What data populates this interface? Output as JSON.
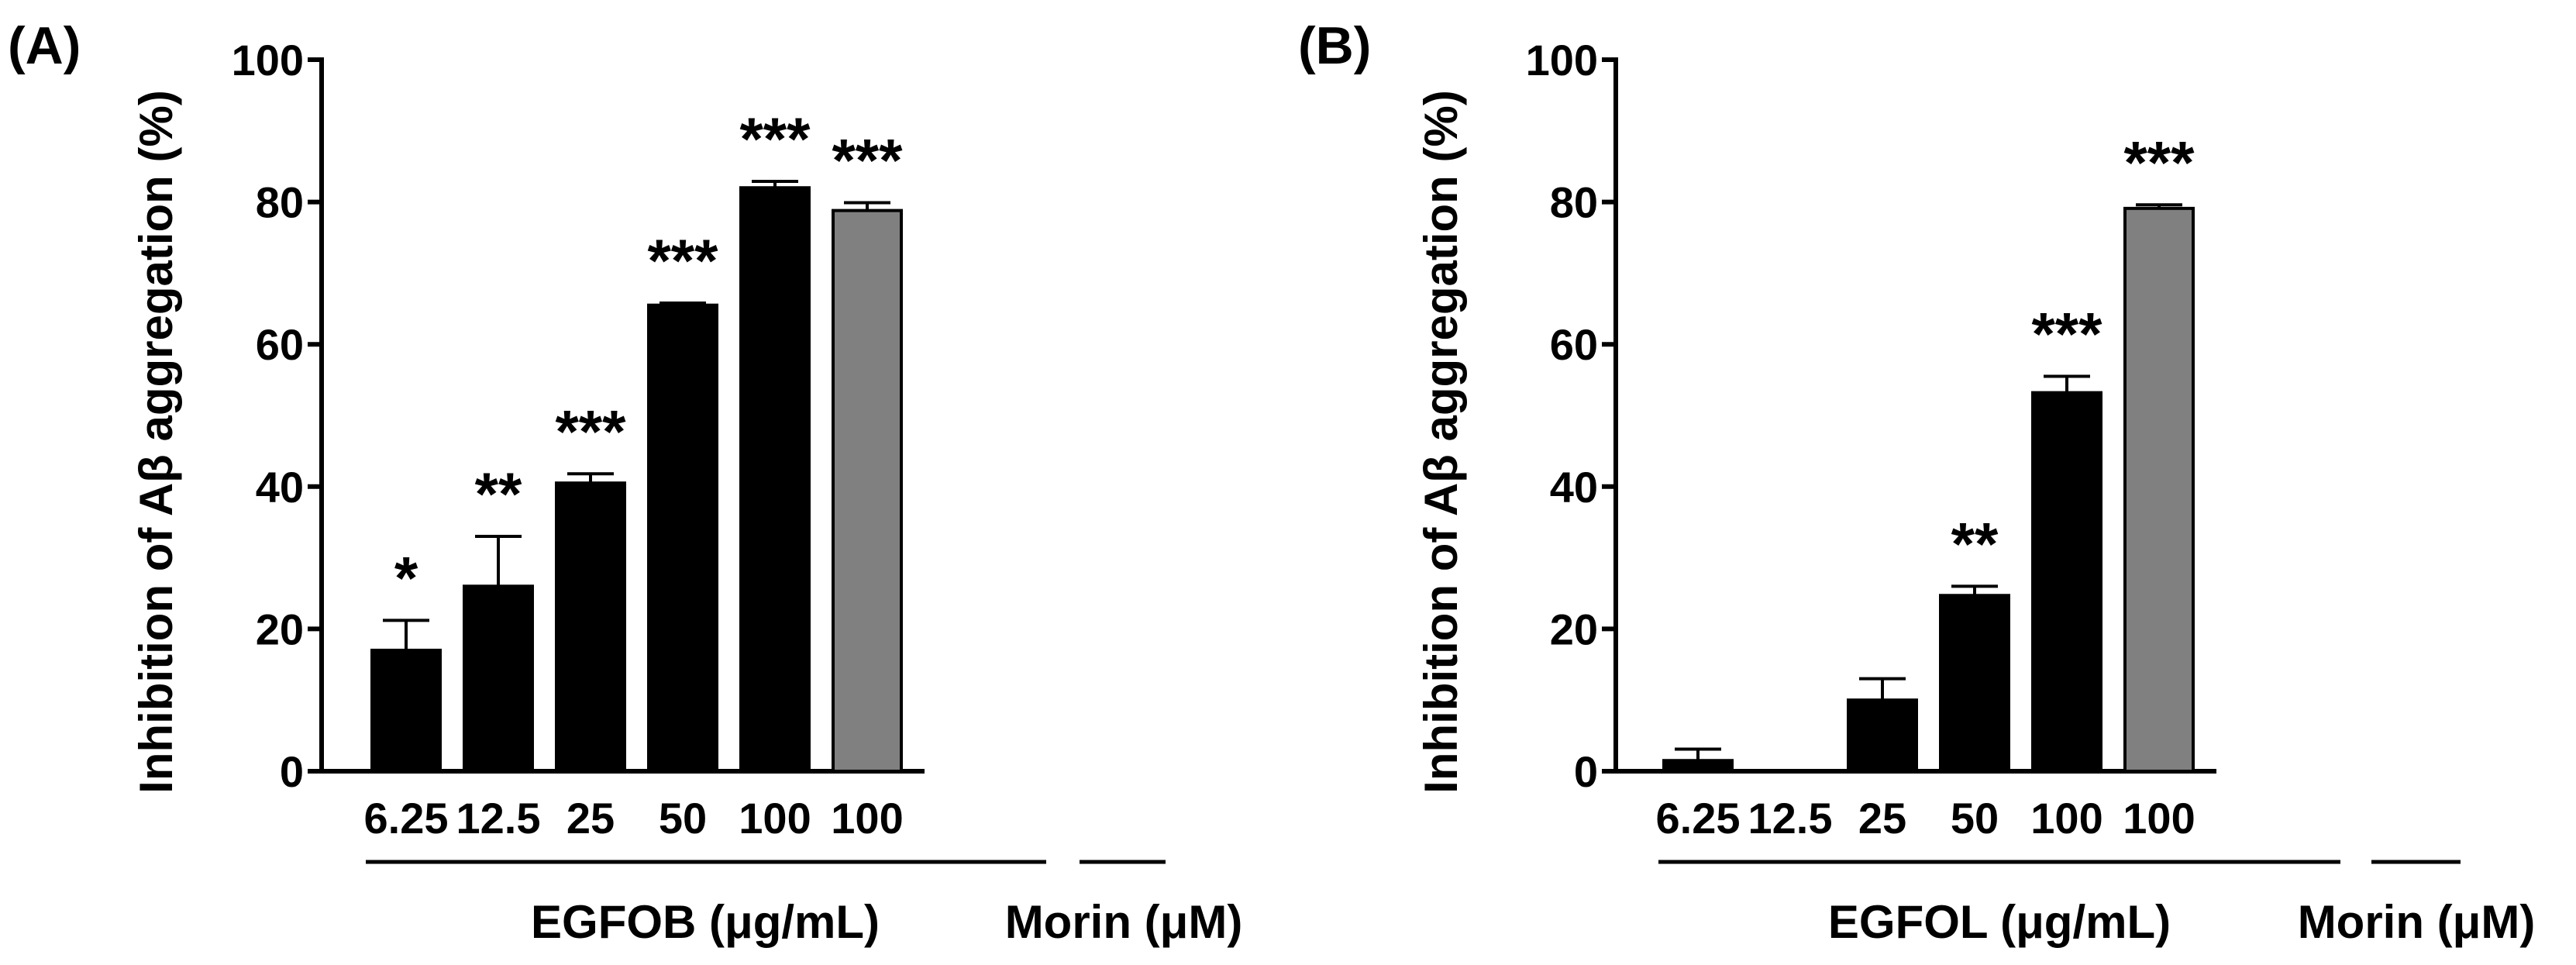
{
  "chart_data": [
    {
      "panel": "(A)",
      "type": "bar",
      "ylabel": "Inhibition of Aβ aggregation (%)",
      "ylim": [
        0,
        100
      ],
      "yticks": [
        0,
        20,
        40,
        60,
        80,
        100
      ],
      "grid": false,
      "categories": [
        "6.25",
        "12.5",
        "25",
        "50",
        "100",
        "100"
      ],
      "values": [
        17,
        26,
        40.5,
        65.5,
        82,
        78.8
      ],
      "errors": [
        4.2,
        7,
        1.3,
        0.3,
        0.9,
        1.1
      ],
      "significance": [
        "*",
        "**",
        "***",
        "***",
        "***",
        "***"
      ],
      "colors": [
        "#000000",
        "#000000",
        "#000000",
        "#000000",
        "#000000",
        "#808080"
      ],
      "groups": [
        {
          "label": "EGFOB (μg/mL)",
          "from": 0,
          "to": 4
        },
        {
          "label": "Morin (μM)",
          "from": 5,
          "to": 5
        }
      ]
    },
    {
      "panel": "(B)",
      "type": "bar",
      "ylabel": "Inhibition of Aβ aggregation (%)",
      "ylim": [
        0,
        100
      ],
      "yticks": [
        0,
        20,
        40,
        60,
        80,
        100
      ],
      "grid": false,
      "categories": [
        "6.25",
        "12.5",
        "25",
        "50",
        "100",
        "100"
      ],
      "values": [
        1.5,
        0,
        10,
        24.7,
        53.2,
        79.1
      ],
      "errors": [
        1.6,
        0,
        3,
        1.3,
        2.3,
        0.5
      ],
      "significance": [
        "",
        "",
        "",
        "**",
        "***",
        "***"
      ],
      "colors": [
        "#000000",
        "#000000",
        "#000000",
        "#000000",
        "#000000",
        "#808080"
      ],
      "groups": [
        {
          "label": "EGFOL (μg/mL)",
          "from": 0,
          "to": 4
        },
        {
          "label": "Morin (μM)",
          "from": 5,
          "to": 5
        }
      ]
    }
  ]
}
